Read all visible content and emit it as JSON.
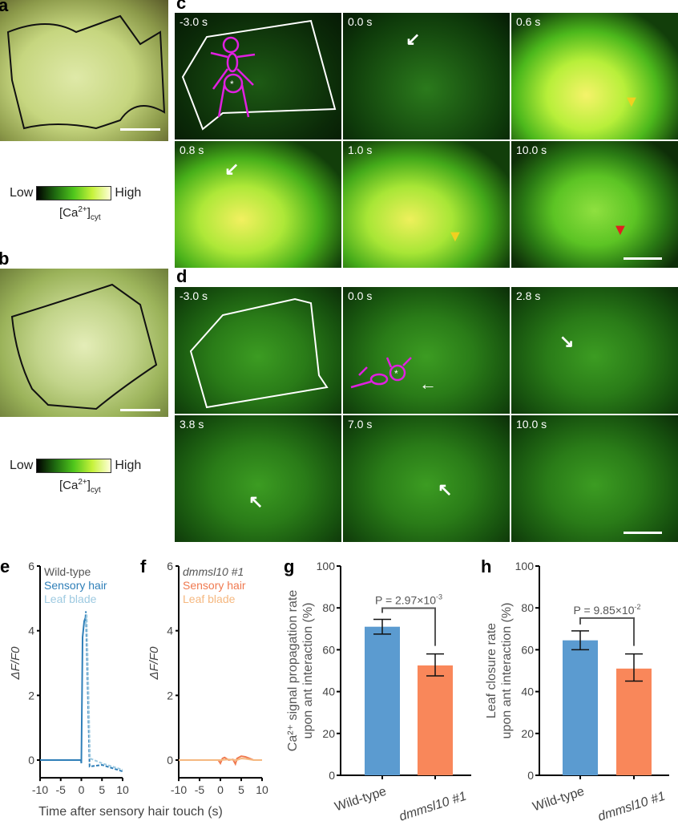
{
  "panels": {
    "a": "a",
    "b": "b",
    "c": "c",
    "d": "d",
    "e": "e",
    "f": "f",
    "g": "g",
    "h": "h"
  },
  "colorbar": {
    "low": "Low",
    "high": "High",
    "label": "[Ca",
    "sup": "2+",
    "close": "]",
    "sub": "cyt"
  },
  "panel_c": {
    "times": [
      "-3.0 s",
      "0.0 s",
      "0.6 s",
      "0.8 s",
      "1.0 s",
      "10.0 s"
    ]
  },
  "panel_d": {
    "times": [
      "-3.0 s",
      "0.0 s",
      "2.8 s",
      "3.8 s",
      "7.0 s",
      "10.0 s"
    ]
  },
  "colors": {
    "wt": "#2f7fb8",
    "wt_light": "#9ecae1",
    "mut": "#f07a50",
    "mut_light": "#f5b880",
    "bar_wt": "#5b9bd0",
    "bar_mut": "#f9875a"
  },
  "chart_data": [
    {
      "id": "e",
      "type": "line",
      "ylabel": "ΔF/F0",
      "xlabel": "Time after sensory hair touch (s)",
      "xlim": [
        -10,
        10
      ],
      "ylim": [
        -0.5,
        6
      ],
      "xticks": [
        "-10",
        "-5",
        "0",
        "5",
        "10"
      ],
      "yticks": [
        "0",
        "2",
        "4",
        "6"
      ],
      "legend_title": "Wild-type",
      "series": [
        {
          "name": "Sensory hair",
          "style": "solid",
          "x": [
            -10,
            -5,
            -0.1,
            0,
            0.3,
            0.7,
            1.0
          ],
          "y": [
            0,
            0,
            0,
            -0.1,
            3.8,
            4.3,
            4.4
          ]
        },
        {
          "name": "Sensory hair (decay)",
          "style": "dashed",
          "x": [
            1.0,
            1.1,
            2.0,
            5,
            10
          ],
          "y": [
            4.4,
            4.6,
            -0.2,
            -0.15,
            -0.35
          ]
        },
        {
          "name": "Leaf blade",
          "style": "dashed",
          "x": [
            1.0,
            1.3,
            2.1,
            5,
            10
          ],
          "y": [
            4.2,
            4.5,
            0.05,
            -0.1,
            -0.3
          ]
        }
      ]
    },
    {
      "id": "f",
      "type": "line",
      "ylabel": "ΔF/F0",
      "xlabel": "",
      "xlim": [
        -10,
        10
      ],
      "ylim": [
        -0.5,
        6
      ],
      "xticks": [
        "-10",
        "-5",
        "0",
        "5",
        "10"
      ],
      "yticks": [
        "0",
        "2",
        "4",
        "6"
      ],
      "legend_title": "dmmsl10 #1",
      "series": [
        {
          "name": "Sensory hair",
          "style": "solid",
          "x": [
            -10,
            -5,
            -0.5,
            0,
            0.5,
            1,
            2,
            3,
            3.6,
            4,
            5,
            6,
            7,
            8,
            10
          ],
          "y": [
            0,
            0,
            0,
            -0.1,
            0.05,
            0.08,
            0,
            0.02,
            -0.12,
            0.05,
            0.12,
            0.1,
            0.05,
            0,
            0
          ]
        },
        {
          "name": "Leaf blade",
          "style": "solid",
          "x": [
            -10,
            -5,
            0,
            2,
            4,
            5,
            6,
            8,
            10
          ],
          "y": [
            0,
            0,
            0,
            0.02,
            0,
            0.05,
            0.04,
            0,
            0
          ]
        }
      ]
    },
    {
      "id": "g",
      "type": "bar",
      "ylabel": "Ca2+ signal propagation rate upon ant interaction (%)",
      "ylabel_lines": [
        "Ca²⁺ signal propagation rate",
        "upon ant interaction (%)"
      ],
      "categories": [
        "Wild-type",
        "dmmsl10 #1"
      ],
      "values": [
        71,
        52.5
      ],
      "err_low": [
        67.5,
        47.5
      ],
      "err_high": [
        74.5,
        58
      ],
      "ylim": [
        0,
        100
      ],
      "yticks": [
        "0",
        "20",
        "40",
        "60",
        "80",
        "100"
      ],
      "pvalue": "P = 2.97×10",
      "pexp": "-3"
    },
    {
      "id": "h",
      "type": "bar",
      "ylabel": "Leaf closure rate upon ant interaction (%)",
      "ylabel_lines": [
        "Leaf closure rate",
        "upon ant interaction (%)"
      ],
      "categories": [
        "Wild-type",
        "dmmsl10 #1"
      ],
      "values": [
        64.5,
        51
      ],
      "err_low": [
        60,
        45
      ],
      "err_high": [
        69,
        58
      ],
      "ylim": [
        0,
        100
      ],
      "yticks": [
        "0",
        "20",
        "40",
        "60",
        "80",
        "100"
      ],
      "pvalue": "P = 9.85×10",
      "pexp": "-2"
    }
  ]
}
